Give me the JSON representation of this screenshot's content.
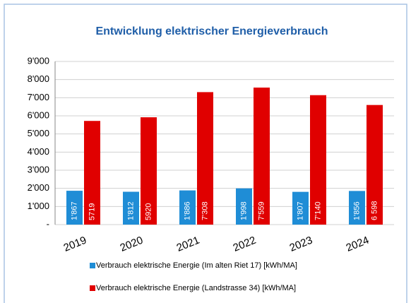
{
  "chart_data": {
    "type": "bar",
    "title": "Entwicklung elektrischer Energieverbrauch",
    "categories": [
      "2019",
      "2020",
      "2021",
      "2022",
      "2023",
      "2024"
    ],
    "series": [
      {
        "name": "Verbrauch elektrische Energie (Im alten Riet 17) [kWh/MA]",
        "color": "#1f8dd6",
        "values": [
          1867,
          1812,
          1886,
          1998,
          1807,
          1856
        ],
        "value_labels": [
          "1'867",
          "1'812",
          "1'886",
          "1'998",
          "1'807",
          "1'856"
        ]
      },
      {
        "name": "Verbrauch elektrische Energie (Landstrasse 34) [kWh/MA]",
        "color": "#e00000",
        "values": [
          5719,
          5920,
          7308,
          7559,
          7140,
          6598
        ],
        "value_labels": [
          "5719",
          "5920",
          "7'308",
          "7'559",
          "7'140",
          "6 598"
        ]
      }
    ],
    "ylim": [
      0,
      9000
    ],
    "yticks": [
      {
        "value": 0,
        "label": "-"
      },
      {
        "value": 1000,
        "label": "1'000"
      },
      {
        "value": 2000,
        "label": "2'000"
      },
      {
        "value": 3000,
        "label": "3'000"
      },
      {
        "value": 4000,
        "label": "4'000"
      },
      {
        "value": 5000,
        "label": "5'000"
      },
      {
        "value": 6000,
        "label": "6'000"
      },
      {
        "value": 7000,
        "label": "7'000"
      },
      {
        "value": 8000,
        "label": "8'000"
      },
      {
        "value": 9000,
        "label": "9'000"
      }
    ],
    "grid": true
  }
}
